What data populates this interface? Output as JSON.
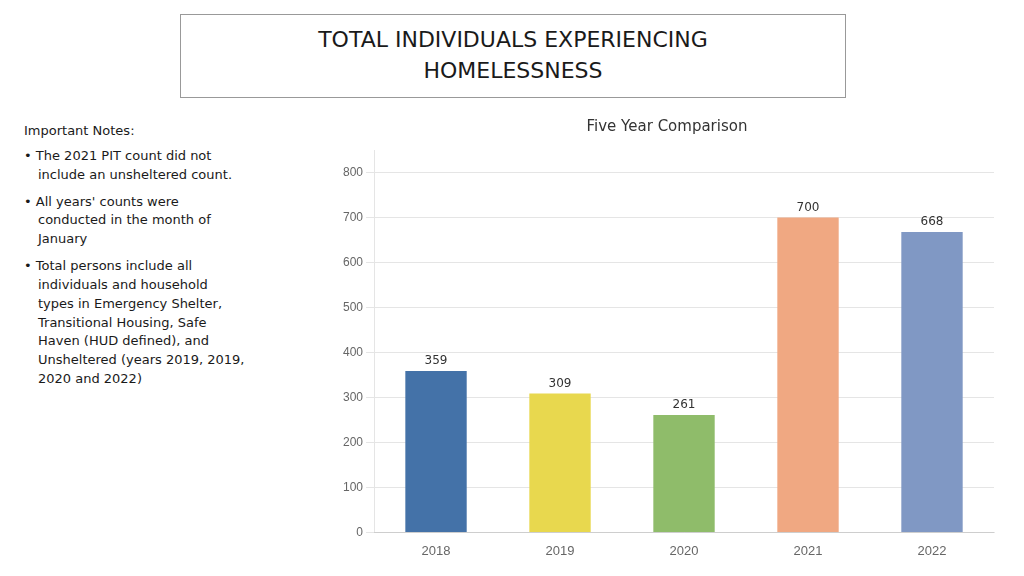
{
  "chart_data": {
    "type": "bar",
    "title": "TOTAL INDIVIDUALS EXPERIENCING\nHOMELESSNESS",
    "subtitle": "Five Year Comparison",
    "annotations": [
      "Important Notes:",
      "• The 2021 PIT count did not\ninclude an unsheltered count.",
      "• All years' counts were\nconducted in the month of\nJanuary",
      "• Total persons include all\nindividuals and household\ntypes in Emergency Shelter,\nTransitional Housing, Safe\nHaven (HUD defined), and\nUnsheltered (years 2019, 2019,\n2020 and 2022)"
    ],
    "categories": [
      "2018",
      "2019",
      "2020",
      "2021",
      "2022"
    ],
    "values": [
      359,
      309,
      261,
      700,
      668
    ],
    "colors": [
      "#4472A8",
      "#E8D84E",
      "#8FBC6A",
      "#F0A882",
      "#8098C4"
    ],
    "ylim": [
      0,
      850
    ],
    "yticks": [
      0,
      100,
      200,
      300,
      400,
      500,
      600,
      700,
      800
    ],
    "grid": true,
    "data_labels": true
  }
}
